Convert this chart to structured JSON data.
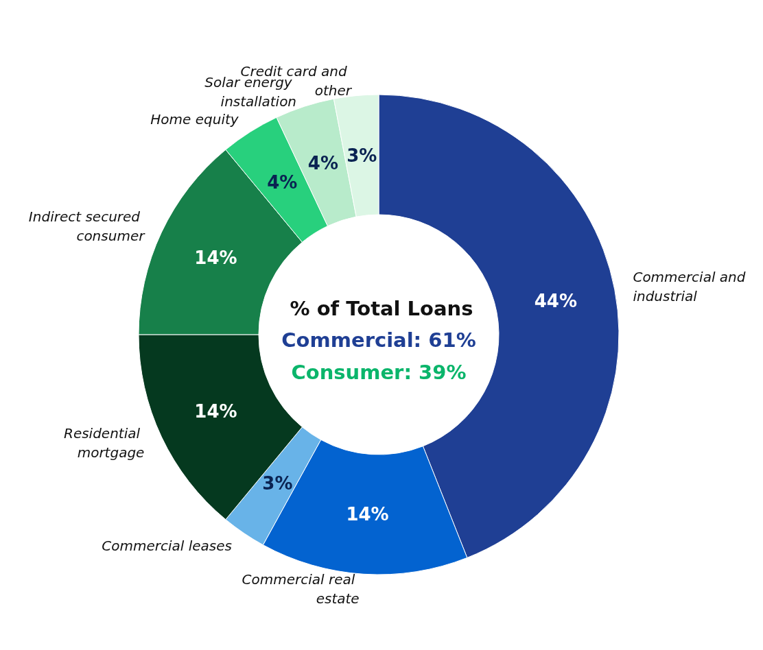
{
  "chart_data": {
    "type": "donut",
    "title": "% of Total Loans",
    "categories": [
      "Commercial and industrial",
      "Commercial real estate",
      "Commercial leases",
      "Residential mortgage",
      "Indirect secured consumer",
      "Home equity",
      "Solar energy installation",
      "Credit card and other"
    ],
    "values": [
      44,
      14,
      3,
      14,
      14,
      4,
      4,
      3
    ],
    "value_labels": [
      "44%",
      "14%",
      "3%",
      "14%",
      "14%",
      "4%",
      "4%",
      "3%"
    ],
    "colors": [
      "#1f3f94",
      "#0363d0",
      "#68b3e8",
      "#05391f",
      "#17804a",
      "#28d07d",
      "#b8ebcb",
      "#dcf6e5"
    ],
    "annotations": [
      "Commercial: 61%",
      "Consumer: 39%"
    ],
    "legend": false
  }
}
